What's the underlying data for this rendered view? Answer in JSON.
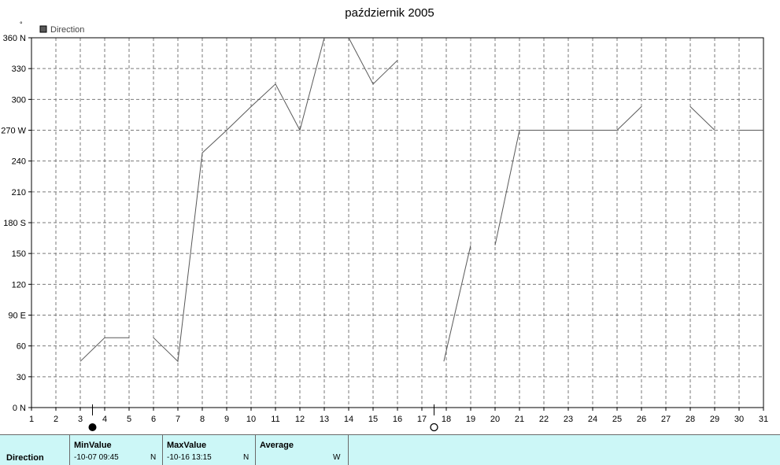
{
  "chart_data": {
    "type": "line",
    "title": "październik 2005",
    "ylabel": "°",
    "legend": {
      "items": [
        "Direction"
      ],
      "placement": "top-left"
    },
    "ylim": [
      0,
      360
    ],
    "xlim": [
      1,
      31
    ],
    "grid": true,
    "y_ticks": [
      "0 N",
      "30",
      "60",
      "90 E",
      "120",
      "150",
      "180 S",
      "210",
      "240",
      "270 W",
      "300",
      "330",
      "360 N"
    ],
    "x_ticks": [
      "1",
      "2",
      "3",
      "4",
      "5",
      "6",
      "7",
      "8",
      "9",
      "10",
      "11",
      "12",
      "13",
      "14",
      "15",
      "16",
      "17",
      "18",
      "19",
      "20",
      "21",
      "22",
      "23",
      "24",
      "25",
      "26",
      "27",
      "28",
      "29",
      "30",
      "31"
    ],
    "series": [
      {
        "name": "Direction",
        "color": "#595959",
        "segments": [
          [
            [
              3,
              45
            ],
            [
              4,
              68
            ],
            [
              5,
              68
            ]
          ],
          [
            [
              6,
              68
            ],
            [
              7,
              45
            ],
            [
              8,
              248
            ],
            [
              9,
              270
            ],
            [
              10,
              293
            ],
            [
              11,
              315
            ],
            [
              12,
              270
            ],
            [
              13,
              360
            ]
          ],
          [
            [
              14,
              360
            ],
            [
              15,
              315
            ],
            [
              16,
              338
            ]
          ],
          [
            [
              17.9,
              45
            ],
            [
              19,
              158
            ]
          ],
          [
            [
              20,
              158
            ],
            [
              21,
              270
            ],
            [
              22,
              270
            ],
            [
              23,
              270
            ],
            [
              24,
              270
            ],
            [
              25,
              270
            ],
            [
              26,
              293
            ]
          ],
          [
            [
              28,
              293
            ],
            [
              29,
              270
            ]
          ],
          [
            [
              30,
              270
            ],
            [
              31,
              270
            ]
          ]
        ]
      }
    ],
    "markers": [
      {
        "x": 3.5,
        "symbol": "filled-circle"
      },
      {
        "x": 17.5,
        "symbol": "open-circle"
      }
    ]
  },
  "stats": {
    "row_label": "Direction",
    "columns": [
      {
        "header": "MinValue",
        "value": "-10-07  09:45",
        "unit": "N"
      },
      {
        "header": "MaxValue",
        "value": "-10-16  13:15",
        "unit": "N"
      },
      {
        "header": "Average",
        "value": "",
        "unit": "W"
      }
    ]
  }
}
